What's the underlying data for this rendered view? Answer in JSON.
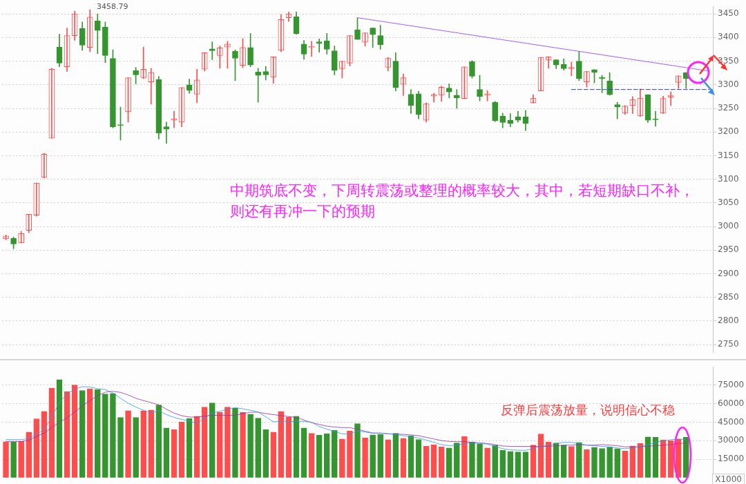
{
  "chart_data": [
    {
      "type": "candlestick",
      "categories": [
        null,
        null,
        null,
        null,
        null,
        null,
        null,
        null,
        null,
        null,
        null,
        null,
        null,
        null,
        null,
        null,
        null,
        null,
        null,
        null,
        null,
        null,
        null,
        null,
        null,
        null,
        null,
        null,
        null,
        null,
        null,
        null,
        null,
        null,
        null,
        null,
        null,
        null,
        null,
        null,
        null,
        null,
        null,
        null,
        null,
        null,
        null,
        null,
        null,
        null,
        null,
        null,
        null,
        null,
        null,
        null,
        null,
        null,
        null,
        null,
        null,
        null,
        null,
        null,
        null,
        null,
        null,
        null,
        null,
        null,
        null,
        null,
        null,
        null,
        null,
        null,
        null,
        null,
        null,
        null,
        null,
        null,
        null,
        null,
        null,
        null,
        null,
        null,
        null,
        null,
        null,
        null,
        null
      ],
      "ohlc": [
        [
          2974,
          2982,
          2972,
          2980
        ],
        [
          2975,
          2978,
          2953,
          2963
        ],
        [
          2965,
          2990,
          2965,
          2985
        ],
        [
          2992,
          3026,
          2987,
          3026
        ],
        [
          3024,
          3092,
          3022,
          3092
        ],
        [
          3104,
          3155,
          3103,
          3153
        ],
        [
          3187,
          3335,
          3187,
          3333
        ],
        [
          3380,
          3407,
          3338,
          3346
        ],
        [
          3338,
          3420,
          3328,
          3404
        ],
        [
          3404,
          3456,
          3394,
          3450
        ],
        [
          3419,
          3433,
          3373,
          3384
        ],
        [
          3379,
          3458.79,
          3370,
          3443
        ],
        [
          3435,
          3450,
          3366,
          3415
        ],
        [
          3422,
          3433,
          3347,
          3362
        ],
        [
          3356,
          3374,
          3209,
          3211
        ],
        [
          3215,
          3253,
          3183,
          3214
        ],
        [
          3243,
          3315,
          3221,
          3315
        ],
        [
          3330,
          3337,
          3302,
          3321
        ],
        [
          3315,
          3380,
          3313,
          3333
        ],
        [
          3306,
          3335,
          3259,
          3326
        ],
        [
          3311,
          3318,
          3185,
          3198
        ],
        [
          3211,
          3221,
          3176,
          3206
        ],
        [
          3225,
          3244,
          3209,
          3228
        ],
        [
          3221,
          3294,
          3211,
          3294
        ],
        [
          3300,
          3312,
          3282,
          3288
        ],
        [
          3280,
          3333,
          3262,
          3310
        ],
        [
          3333,
          3368,
          3329,
          3368
        ],
        [
          3376,
          3391,
          3353,
          3372
        ],
        [
          3362,
          3382,
          3335,
          3378
        ],
        [
          3380,
          3392,
          3335,
          3386
        ],
        [
          3371,
          3374,
          3309,
          3356
        ],
        [
          3341,
          3398,
          3336,
          3379
        ],
        [
          3379,
          3409,
          3338,
          3342
        ],
        [
          3327,
          3335,
          3263,
          3320
        ],
        [
          3328,
          3339,
          3310,
          3321
        ],
        [
          3316,
          3359,
          3303,
          3359
        ],
        [
          3373,
          3449,
          3370,
          3438
        ],
        [
          3442,
          3454,
          3434,
          3450
        ],
        [
          3444,
          3454,
          3407,
          3408
        ],
        [
          3386,
          3394,
          3354,
          3365
        ],
        [
          3379,
          3392,
          3360,
          3381
        ],
        [
          3391,
          3397,
          3369,
          3388
        ],
        [
          3393,
          3409,
          3365,
          3375
        ],
        [
          3372,
          3382,
          3321,
          3331
        ],
        [
          3334,
          3350,
          3314,
          3350
        ],
        [
          3346,
          3404,
          3340,
          3404
        ],
        [
          3416,
          3442,
          3396,
          3396
        ],
        [
          3390,
          3410,
          3382,
          3410
        ],
        [
          3420,
          3421,
          3379,
          3406
        ],
        [
          3404,
          3426,
          3375,
          3385
        ],
        [
          3337,
          3358,
          3329,
          3356
        ],
        [
          3350,
          3368,
          3287,
          3294
        ],
        [
          3301,
          3323,
          3277,
          3315
        ],
        [
          3280,
          3290,
          3239,
          3256
        ],
        [
          3281,
          3286,
          3228,
          3237
        ],
        [
          3225,
          3262,
          3221,
          3260
        ],
        [
          3276,
          3282,
          3263,
          3279
        ],
        [
          3278,
          3297,
          3265,
          3295
        ],
        [
          3293,
          3302,
          3272,
          3285
        ],
        [
          3278,
          3290,
          3250,
          3272
        ],
        [
          3271,
          3338,
          3270,
          3338
        ],
        [
          3349,
          3351,
          3314,
          3318
        ],
        [
          3290,
          3320,
          3266,
          3275
        ],
        [
          3278,
          3288,
          3266,
          3281
        ],
        [
          3263,
          3265,
          3222,
          3224
        ],
        [
          3234,
          3240,
          3209,
          3220
        ],
        [
          3225,
          3239,
          3211,
          3218
        ],
        [
          3232,
          3244,
          3221,
          3225
        ],
        [
          3232,
          3246,
          3203,
          3218
        ],
        [
          3262,
          3279,
          3261,
          3272
        ],
        [
          3287,
          3358,
          3287,
          3358
        ],
        [
          3352,
          3359,
          3335,
          3359
        ],
        [
          3353,
          3353,
          3334,
          3342
        ],
        [
          3343,
          3355,
          3331,
          3334
        ],
        [
          3334,
          3348,
          3319,
          3337
        ],
        [
          3350,
          3371,
          3309,
          3313
        ],
        [
          3306,
          3328,
          3295,
          3328
        ],
        [
          3332,
          3332,
          3304,
          3326
        ],
        [
          3316,
          3320,
          3283,
          3313
        ],
        [
          3308,
          3326,
          3278,
          3279
        ],
        [
          3258,
          3263,
          3228,
          3253
        ],
        [
          3240,
          3256,
          3237,
          3255
        ],
        [
          3256,
          3275,
          3239,
          3269
        ],
        [
          3234,
          3291,
          3233,
          3272
        ],
        [
          3279,
          3279,
          3220,
          3225
        ],
        [
          3228,
          3244,
          3212,
          3226
        ],
        [
          3240,
          3276,
          3239,
          3271
        ],
        [
          3274,
          3285,
          3256,
          3278
        ],
        [
          3305,
          3319,
          3292,
          3319
        ],
        [
          3326,
          3326,
          3292,
          3313
        ],
        null,
        null,
        null
      ],
      "colors": [
        "#ff4d4d",
        "#35962f",
        "#ff4d4d",
        "#ff4d4d",
        "#ff4d4d",
        "#ff4d4d",
        "#ff4d4d",
        "#35962f",
        "#ff4d4d",
        "#ff4d4d",
        "#35962f",
        "#ff4d4d",
        "#35962f",
        "#35962f",
        "#35962f",
        "#35962f",
        "#ff4d4d",
        "#35962f",
        "#ff4d4d",
        "#ff4d4d",
        "#35962f",
        "#35962f",
        "#ff4d4d",
        "#ff4d4d",
        "#35962f",
        "#ff4d4d",
        "#ff4d4d",
        "#35962f",
        "#ff4d4d",
        "#ff4d4d",
        "#35962f",
        "#ff4d4d",
        "#35962f",
        "#35962f",
        "#35962f",
        "#ff4d4d",
        "#ff4d4d",
        "#ff4d4d",
        "#35962f",
        "#35962f",
        "#ff4d4d",
        "#35962f",
        "#35962f",
        "#35962f",
        "#ff4d4d",
        "#ff4d4d",
        "#35962f",
        "#ff4d4d",
        "#35962f",
        "#35962f",
        "#ff4d4d",
        "#35962f",
        "#ff4d4d",
        "#35962f",
        "#35962f",
        "#ff4d4d",
        "#ff4d4d",
        "#ff4d4d",
        "#35962f",
        "#35962f",
        "#ff4d4d",
        "#35962f",
        "#35962f",
        "#ff4d4d",
        "#35962f",
        "#35962f",
        "#35962f",
        "#35962f",
        "#35962f",
        "#ff4d4d",
        "#ff4d4d",
        "#ff4d4d",
        "#35962f",
        "#35962f",
        "#ff4d4d",
        "#35962f",
        "#ff4d4d",
        "#35962f",
        "#35962f",
        "#35962f",
        "#35962f",
        "#ff4d4d",
        "#ff4d4d",
        "#ff4d4d",
        "#35962f",
        "#35962f",
        "#ff4d4d",
        "#ff4d4d",
        "#ff4d4d",
        "#35962f",
        null,
        null,
        null
      ],
      "series": [
        {
          "type": "line",
          "color": "#9b4dff",
          "line_style": "dotted",
          "values": [
            null,
            null,
            null,
            null,
            null,
            null,
            null,
            null,
            null,
            null,
            null,
            null,
            null,
            null,
            null,
            null,
            null,
            null,
            null,
            null,
            null,
            null,
            null,
            null,
            null,
            null,
            null,
            null,
            null,
            null,
            null,
            null,
            null,
            null,
            null,
            null,
            null,
            null,
            null,
            null,
            null,
            null,
            null,
            null,
            null,
            null,
            3442,
            null,
            null,
            null,
            null,
            null,
            null,
            null,
            null,
            null,
            null,
            null,
            null,
            null,
            null,
            null,
            null,
            null,
            null,
            null,
            null,
            null,
            null,
            null,
            null,
            null,
            null,
            null,
            null,
            null,
            null,
            null,
            null,
            null,
            null,
            null,
            null,
            null,
            null,
            null,
            null,
            null,
            null,
            null,
            null,
            null,
            3329
          ]
        },
        {
          "type": "line",
          "color": "#2b3bff",
          "line_style": "dashed",
          "values": [
            null,
            null,
            null,
            null,
            null,
            null,
            null,
            null,
            null,
            null,
            null,
            null,
            null,
            null,
            null,
            null,
            null,
            null,
            null,
            null,
            null,
            null,
            null,
            null,
            null,
            null,
            null,
            null,
            null,
            null,
            null,
            null,
            null,
            null,
            null,
            null,
            null,
            null,
            null,
            null,
            null,
            null,
            null,
            null,
            null,
            null,
            null,
            null,
            null,
            null,
            null,
            null,
            null,
            null,
            null,
            null,
            null,
            null,
            null,
            null,
            null,
            null,
            null,
            null,
            null,
            null,
            null,
            null,
            null,
            null,
            null,
            null,
            null,
            null,
            3290,
            null,
            null,
            null,
            null,
            null,
            null,
            null,
            null,
            null,
            null,
            null,
            null,
            null,
            null,
            null,
            null,
            null,
            3290
          ]
        }
      ],
      "ylim": [
        2733,
        3466
      ],
      "yticks": [
        2750,
        2800,
        2850,
        2900,
        2950,
        3000,
        3050,
        3100,
        3150,
        3200,
        3250,
        3300,
        3350,
        3400,
        3450
      ],
      "grid": "y",
      "tick_labels": "y",
      "marker": "none",
      "annotations": [
        "中期筑底不变，下周转震荡或整理的概率较大，其中，若短期缺口不补，则还有再冲一下的预期",
        "3458.79"
      ]
    },
    {
      "type": "bar",
      "categories": [
        null,
        null,
        null,
        null,
        null,
        null,
        null,
        null,
        null,
        null,
        null,
        null,
        null,
        null,
        null,
        null,
        null,
        null,
        null,
        null,
        null,
        null,
        null,
        null,
        null,
        null,
        null,
        null,
        null,
        null,
        null,
        null,
        null,
        null,
        null,
        null,
        null,
        null,
        null,
        null,
        null,
        null,
        null,
        null,
        null,
        null,
        null,
        null,
        null,
        null,
        null,
        null,
        null,
        null,
        null,
        null,
        null,
        null,
        null,
        null,
        null,
        null,
        null,
        null,
        null,
        null,
        null,
        null,
        null,
        null,
        null,
        null,
        null,
        null,
        null,
        null,
        null,
        null,
        null,
        null,
        null,
        null,
        null,
        null,
        null,
        null,
        null,
        null,
        null,
        null,
        null,
        null,
        null
      ],
      "series": [
        {
          "type": "bar",
          "colors": [
            "#ff4d4d",
            "#35962f",
            "#ff4d4d",
            "#ff4d4d",
            "#ff4d4d",
            "#ff4d4d",
            "#ff4d4d",
            "#35962f",
            "#ff4d4d",
            "#ff4d4d",
            "#35962f",
            "#ff4d4d",
            "#35962f",
            "#35962f",
            "#35962f",
            "#35962f",
            "#ff4d4d",
            "#35962f",
            "#ff4d4d",
            "#ff4d4d",
            "#35962f",
            "#35962f",
            "#ff4d4d",
            "#ff4d4d",
            "#35962f",
            "#ff4d4d",
            "#ff4d4d",
            "#35962f",
            "#ff4d4d",
            "#ff4d4d",
            "#35962f",
            "#ff4d4d",
            "#35962f",
            "#35962f",
            "#35962f",
            "#ff4d4d",
            "#ff4d4d",
            "#ff4d4d",
            "#35962f",
            "#35962f",
            "#ff4d4d",
            "#35962f",
            "#35962f",
            "#35962f",
            "#ff4d4d",
            "#ff4d4d",
            "#35962f",
            "#ff4d4d",
            "#35962f",
            "#35962f",
            "#ff4d4d",
            "#35962f",
            "#ff4d4d",
            "#35962f",
            "#35962f",
            "#ff4d4d",
            "#ff4d4d",
            "#ff4d4d",
            "#35962f",
            "#35962f",
            "#ff4d4d",
            "#35962f",
            "#35962f",
            "#ff4d4d",
            "#35962f",
            "#35962f",
            "#35962f",
            "#35962f",
            "#35962f",
            "#ff4d4d",
            "#ff4d4d",
            "#ff4d4d",
            "#35962f",
            "#35962f",
            "#ff4d4d",
            "#35962f",
            "#ff4d4d",
            "#35962f",
            "#35962f",
            "#35962f",
            "#35962f",
            "#ff4d4d",
            "#ff4d4d",
            "#ff4d4d",
            "#35962f",
            "#35962f",
            "#ff4d4d",
            "#ff4d4d",
            "#ff4d4d",
            "#35962f",
            null,
            null,
            null
          ],
          "values": [
            29100,
            29100,
            29400,
            36900,
            47800,
            53800,
            72700,
            79600,
            69700,
            75200,
            70800,
            72200,
            71500,
            67900,
            68300,
            48900,
            54300,
            48900,
            54300,
            54900,
            58900,
            40400,
            39000,
            45200,
            48000,
            49800,
            57300,
            60700,
            52900,
            57300,
            56500,
            52900,
            51500,
            48300,
            39000,
            37000,
            53800,
            49200,
            49800,
            40400,
            36000,
            34400,
            35500,
            38500,
            31400,
            37900,
            43900,
            32300,
            34700,
            35100,
            30800,
            36000,
            31900,
            34000,
            31000,
            25500,
            26800,
            25000,
            24100,
            28100,
            33400,
            29000,
            27200,
            24100,
            26300,
            22200,
            21300,
            20800,
            20800,
            26400,
            35400,
            29000,
            28100,
            26400,
            25400,
            28500,
            22800,
            24600,
            23700,
            24800,
            23500,
            21700,
            25700,
            27900,
            33000,
            32700,
            30500,
            29900,
            31200,
            32700,
            null,
            null,
            null
          ]
        },
        {
          "type": "line",
          "color": "#2e9be6",
          "values": [
            30900,
            30900,
            30900,
            31700,
            35300,
            38800,
            49400,
            60900,
            67900,
            71800,
            73800,
            73600,
            72200,
            71500,
            68800,
            64400,
            60500,
            57300,
            54700,
            52400,
            54300,
            51200,
            48900,
            47300,
            45900,
            44100,
            48200,
            52400,
            53800,
            55600,
            56800,
            55900,
            54700,
            53300,
            49400,
            45300,
            45700,
            45300,
            45700,
            45700,
            45000,
            41500,
            39300,
            37600,
            35500,
            35600,
            37900,
            37000,
            36000,
            36300,
            35600,
            35100,
            34000,
            33200,
            32300,
            30500,
            28600,
            26800,
            25900,
            26300,
            27700,
            28100,
            27700,
            27200,
            25400,
            23500,
            22600,
            22200,
            22200,
            23500,
            25400,
            26400,
            27700,
            28600,
            28600,
            27700,
            26400,
            25900,
            25400,
            25000,
            24100,
            23500,
            24100,
            25400,
            26800,
            28600,
            29900,
            30800,
            31400,
            30800,
            null,
            null,
            null
          ]
        },
        {
          "type": "line",
          "color": "#9b30a8",
          "values": [
            29400,
            29400,
            29400,
            30300,
            33500,
            36200,
            40600,
            45000,
            48500,
            53300,
            58200,
            62600,
            66500,
            69400,
            70100,
            69200,
            67100,
            64400,
            62600,
            60900,
            59100,
            55600,
            52400,
            50300,
            49200,
            49200,
            49900,
            50600,
            50600,
            50600,
            50600,
            52000,
            53100,
            53100,
            52000,
            51200,
            50300,
            49600,
            48900,
            46800,
            44600,
            43200,
            41800,
            41100,
            40600,
            40600,
            39200,
            37700,
            36300,
            36000,
            35600,
            35400,
            35100,
            34700,
            34100,
            32700,
            31400,
            30100,
            29400,
            29200,
            29200,
            28600,
            28300,
            27700,
            26800,
            25700,
            25400,
            25400,
            25400,
            25400,
            25400,
            25400,
            25900,
            26300,
            26400,
            26800,
            26400,
            26400,
            26800,
            26400,
            25900,
            25000,
            25000,
            25000,
            25500,
            25900,
            26400,
            26800,
            27700,
            28100,
            null,
            null,
            null
          ]
        }
      ],
      "ylim": [
        0,
        90000
      ],
      "yticks": [
        15000,
        30000,
        45000,
        60000,
        75000
      ],
      "grid": "y",
      "tick_labels": "y",
      "marker": "none",
      "ylabel": "X1000",
      "annotations": [
        "反弹后震荡放量，说明信心不稳"
      ]
    }
  ]
}
